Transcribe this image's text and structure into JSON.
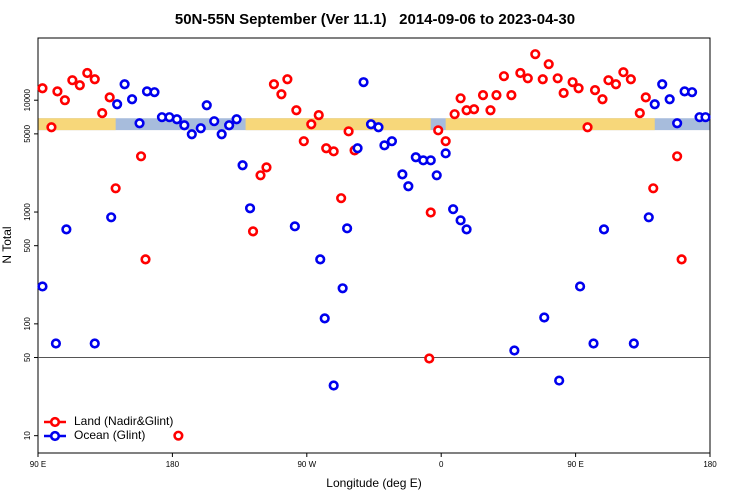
{
  "chart_data": {
    "type": "scatter",
    "title": "50N-55N September (Ver 11.1)   2014-09-06 to 2023-04-30",
    "xlabel": "Longitude (deg E)",
    "ylabel": "N Total",
    "xlim": [
      90,
      540
    ],
    "xticks": [
      {
        "value": 90,
        "label": "90 E"
      },
      180,
      {
        "value": 270,
        "label": "90 W"
      },
      {
        "value": 360,
        "label": "0"
      },
      {
        "value": 450,
        "label": "90 E"
      },
      {
        "value": 540,
        "label": "180"
      }
    ],
    "ylim": [
      7,
      36000
    ],
    "yscale": "log",
    "yticks": [
      10,
      50,
      100,
      500,
      1000,
      5000,
      10000
    ],
    "hline": 50,
    "surface_mask": {
      "land": [
        [
          90,
          142
        ],
        [
          229,
          353
        ],
        [
          363,
          503
        ]
      ],
      "ylim": [
        5400,
        6900
      ],
      "land_color": "#f7d77a",
      "ocean_color": "#a7bcdc"
    },
    "legend": "bottom-left",
    "series": [
      {
        "name": "Land (Nadir&Glint)",
        "color": "#ff0000",
        "x": [
          93,
          99,
          103,
          108,
          113,
          118,
          123,
          128,
          133,
          138,
          142,
          159,
          162,
          184,
          234,
          239,
          243,
          248,
          253,
          257,
          263,
          268,
          273,
          278,
          283,
          288,
          293,
          298,
          302,
          352,
          353,
          358,
          363,
          369,
          373,
          377,
          382,
          388,
          393,
          397,
          402,
          407,
          413,
          418,
          423,
          428,
          432,
          438,
          442,
          448,
          452,
          458,
          463,
          468,
          472,
          477,
          482,
          487,
          493,
          497,
          502,
          518,
          521
        ],
        "values": [
          12800,
          5730,
          12000,
          10000,
          15100,
          13600,
          17500,
          15400,
          7660,
          10600,
          1630,
          3150,
          377,
          10,
          671,
          2130,
          2510,
          13900,
          11300,
          15400,
          8130,
          4300,
          6100,
          7350,
          3720,
          3490,
          1330,
          5270,
          3560,
          49,
          990,
          5380,
          4300,
          7500,
          10400,
          8130,
          8300,
          11100,
          8130,
          11100,
          16400,
          11100,
          17500,
          15700,
          25800,
          15400,
          21000,
          15700,
          11600,
          14500,
          12800,
          5730,
          12300,
          10200,
          15100,
          13900,
          17800,
          15400,
          7660,
          10600,
          1630,
          3150,
          377
        ]
      },
      {
        "name": "Ocean (Glint)",
        "color": "#0000ee",
        "x": [
          93,
          102,
          109,
          128,
          139,
          143,
          148,
          153,
          158,
          163,
          168,
          173,
          178,
          183,
          188,
          193,
          199,
          203,
          208,
          213,
          218,
          223,
          227,
          232,
          262,
          279,
          282,
          288,
          294,
          297,
          304,
          308,
          313,
          318,
          322,
          327,
          334,
          338,
          343,
          348,
          353,
          357,
          363,
          368,
          373,
          377,
          409,
          429,
          439,
          453,
          462,
          469,
          489,
          499,
          503,
          508,
          513,
          518,
          523,
          528,
          533,
          537
        ],
        "values": [
          216,
          66.7,
          700,
          66.7,
          897,
          9200,
          13900,
          10200,
          6220,
          12000,
          11800,
          7050,
          7050,
          6760,
          5970,
          4960,
          5610,
          9020,
          6490,
          4960,
          5970,
          6760,
          2620,
          1080,
          745,
          377,
          112,
          28.1,
          208,
          715,
          3720,
          14500,
          6100,
          5730,
          3950,
          4300,
          2170,
          1700,
          3090,
          2900,
          2900,
          2130,
          3350,
          1060,
          843,
          700,
          57.8,
          114,
          31.1,
          216,
          66.7,
          700,
          66.7,
          897,
          9200,
          13900,
          10200,
          6220,
          12000,
          11800,
          7050,
          7050
        ]
      }
    ]
  }
}
